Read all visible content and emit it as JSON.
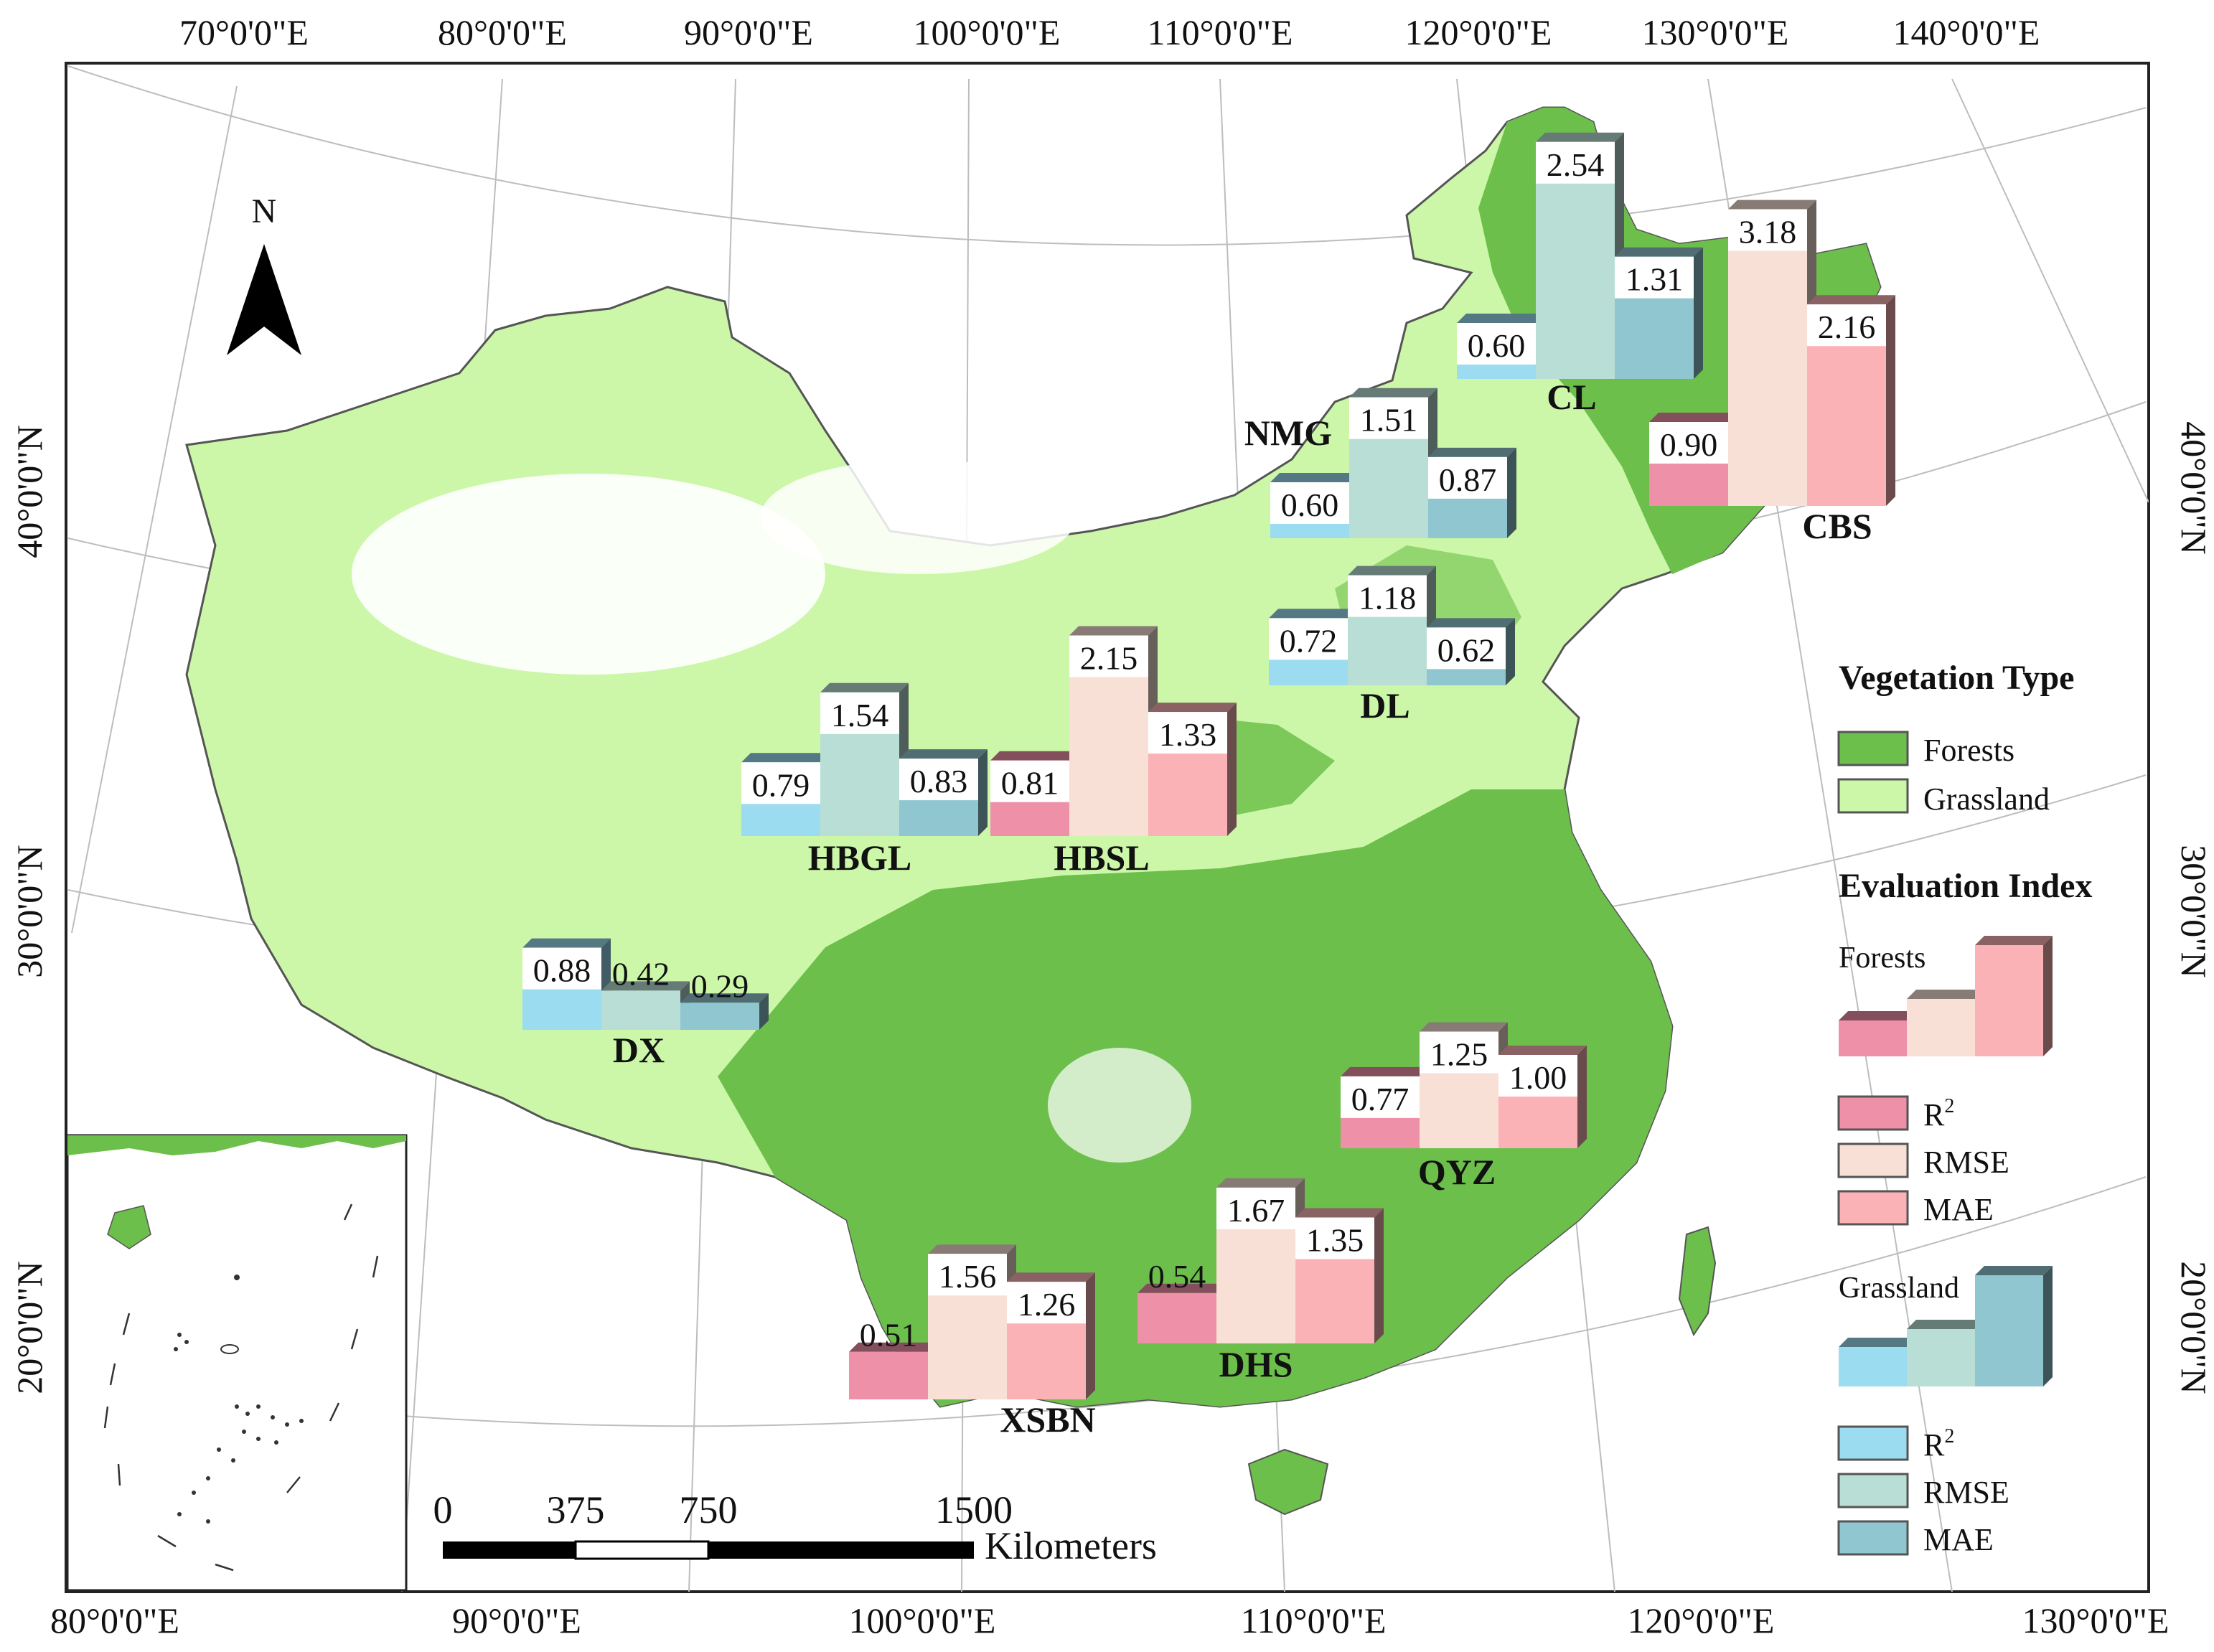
{
  "graticule_labels": {
    "top": [
      "70°0'0\"E",
      "80°0'0\"E",
      "90°0'0\"E",
      "100°0'0\"E",
      "110°0'0\"E",
      "120°0'0\"E",
      "130°0'0\"E",
      "140°0'0\"E"
    ],
    "bottom": [
      "80°0'0\"E",
      "90°0'0\"E",
      "100°0'0\"E",
      "110°0'0\"E",
      "120°0'0\"E",
      "130°0'0\"E"
    ],
    "left": [
      "40°0'0\"N",
      "30°0'0\"N",
      "20°0'0\"N"
    ],
    "right": [
      "40°0'0\"N",
      "30°0'0\"N",
      "20°0'0\"N"
    ]
  },
  "north_arrow": {
    "label": "N"
  },
  "scale_bar": {
    "ticks": [
      "0",
      "375",
      "750",
      "1500"
    ],
    "unit": "Kilometers"
  },
  "legend": {
    "vegetation_title": "Vegetation Type",
    "vegetation_items": [
      {
        "label": "Forests",
        "color": "#6dbf4b"
      },
      {
        "label": "Grassland",
        "color": "#ccf7a8"
      }
    ],
    "evaluation_title": "Evaluation Index",
    "forests_group": {
      "title": "Forests",
      "items": [
        {
          "label": "R",
          "sup": "2",
          "color": "#ee90a8"
        },
        {
          "label": "RMSE",
          "sup": "",
          "color": "#f8e0d6"
        },
        {
          "label": "MAE",
          "sup": "",
          "color": "#fbb2b6"
        }
      ]
    },
    "grassland_group": {
      "title": "Grassland",
      "items": [
        {
          "label": "R",
          "sup": "2",
          "color": "#9bdcf0"
        },
        {
          "label": "RMSE",
          "sup": "",
          "color": "#b9ded6"
        },
        {
          "label": "MAE",
          "sup": "",
          "color": "#8fc6d0"
        }
      ]
    }
  },
  "colors": {
    "forests": "#6dbf4b",
    "grassland": "#ccf7a8",
    "boundary": "#555555",
    "graticule": "#bdbdbd",
    "forest_r2": "#ee90a8",
    "forest_rmse": "#f8e0d6",
    "forest_mae": "#fbb2b6",
    "grass_r2": "#9bdcf0",
    "grass_rmse": "#b9ded6",
    "grass_mae": "#8fc6d0"
  },
  "chart_data": {
    "type": "bar",
    "categories": [
      "R²",
      "RMSE",
      "MAE"
    ],
    "sites": [
      {
        "name": "CL",
        "vegetation": "Grassland",
        "values": [
          0.6,
          2.54,
          1.31
        ]
      },
      {
        "name": "CBS",
        "vegetation": "Forests",
        "values": [
          0.9,
          3.18,
          2.16
        ]
      },
      {
        "name": "NMG",
        "vegetation": "Grassland",
        "values": [
          0.6,
          1.51,
          0.87
        ]
      },
      {
        "name": "DL",
        "vegetation": "Grassland",
        "values": [
          0.72,
          1.18,
          0.62
        ]
      },
      {
        "name": "HBGL",
        "vegetation": "Grassland",
        "values": [
          0.79,
          1.54,
          0.83
        ]
      },
      {
        "name": "HBSL",
        "vegetation": "Forests",
        "values": [
          0.81,
          2.15,
          1.33
        ]
      },
      {
        "name": "DX",
        "vegetation": "Grassland",
        "values": [
          0.88,
          0.42,
          0.29
        ]
      },
      {
        "name": "QYZ",
        "vegetation": "Forests",
        "values": [
          0.77,
          1.25,
          1.0
        ]
      },
      {
        "name": "XSBN",
        "vegetation": "Forests",
        "values": [
          0.51,
          1.56,
          1.26
        ]
      },
      {
        "name": "DHS",
        "vegetation": "Forests",
        "values": [
          0.54,
          1.67,
          1.35
        ]
      }
    ]
  }
}
